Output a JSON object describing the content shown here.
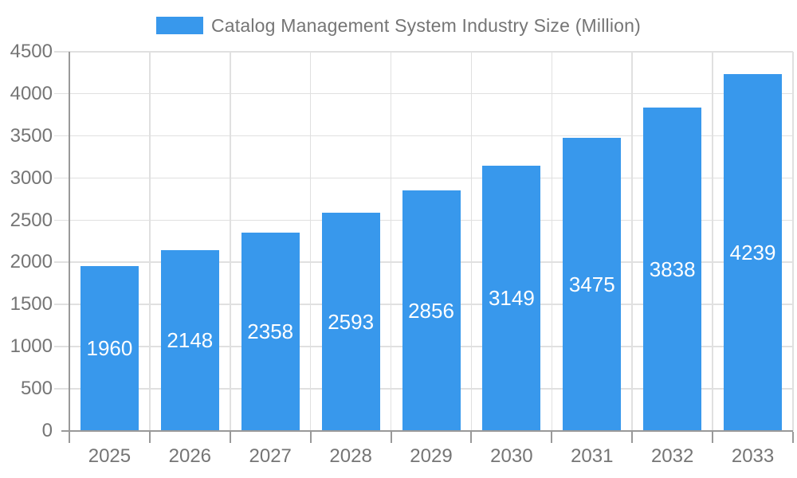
{
  "chart_data": {
    "type": "bar",
    "title": "Catalog Management System Industry Size (Million)",
    "legend_label": "Catalog Management System Industry Size (Million)",
    "legend_position": "top",
    "categories": [
      "2025",
      "2026",
      "2027",
      "2028",
      "2029",
      "2030",
      "2031",
      "2032",
      "2033"
    ],
    "values": [
      1960,
      2148,
      2358,
      2593,
      2856,
      3149,
      3475,
      3838,
      4239
    ],
    "xlabel": "",
    "ylabel": "",
    "ylim": [
      0,
      4500
    ],
    "ytick_step": 500,
    "grid": true,
    "value_labels_shown": true
  },
  "style": {
    "bar_color": "#3898ec",
    "grid_color": "#e0e0e0",
    "axis_color": "#999999",
    "tick_label_color": "#757575",
    "value_label_color": "#ffffff",
    "legend_text_color": "#757575",
    "background_color": "#ffffff"
  }
}
